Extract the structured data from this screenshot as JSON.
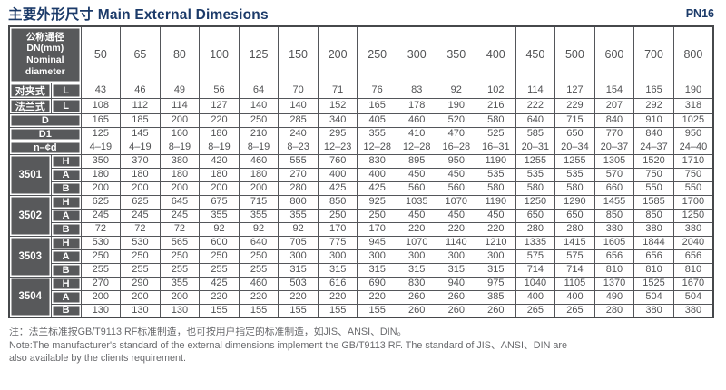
{
  "page": {
    "title": "主要外形尺寸 Main External Dimesions",
    "pressure_rating": "PN16"
  },
  "colors": {
    "accent_navy": "#1b3a69",
    "header_cell_bg": "#58595b",
    "cell_text": "#515254",
    "grid_border": "#54565a"
  },
  "table": {
    "corner_lines": [
      "公称通径",
      "DN(mm)",
      "Nominal",
      "diameter"
    ],
    "dn_columns": [
      "50",
      "65",
      "80",
      "100",
      "125",
      "150",
      "200",
      "250",
      "300",
      "350",
      "400",
      "450",
      "500",
      "600",
      "700",
      "800"
    ],
    "dimension_rows": [
      {
        "label": "对夹式",
        "sub": "L",
        "values": [
          "43",
          "46",
          "49",
          "56",
          "64",
          "70",
          "71",
          "76",
          "83",
          "92",
          "102",
          "114",
          "127",
          "154",
          "165",
          "190"
        ]
      },
      {
        "label": "法兰式",
        "sub": "L",
        "values": [
          "108",
          "112",
          "114",
          "127",
          "140",
          "140",
          "152",
          "165",
          "178",
          "190",
          "216",
          "222",
          "229",
          "207",
          "292",
          "318"
        ]
      },
      {
        "label": "D",
        "values": [
          "165",
          "185",
          "200",
          "220",
          "250",
          "285",
          "340",
          "405",
          "460",
          "520",
          "580",
          "640",
          "715",
          "840",
          "910",
          "1025"
        ]
      },
      {
        "label": "D1",
        "values": [
          "125",
          "145",
          "160",
          "180",
          "210",
          "240",
          "295",
          "355",
          "410",
          "470",
          "525",
          "585",
          "650",
          "770",
          "840",
          "950"
        ]
      },
      {
        "label": "n–¢d",
        "values": [
          "4–19",
          "4–19",
          "8–19",
          "8–19",
          "8–19",
          "8–23",
          "12–23",
          "12–28",
          "12–28",
          "16–28",
          "16–31",
          "20–31",
          "20–34",
          "20–37",
          "24–37",
          "24–40"
        ]
      }
    ],
    "model_groups": [
      {
        "model": "3501",
        "rows": [
          {
            "sub": "H",
            "values": [
              "350",
              "370",
              "380",
              "420",
              "460",
              "555",
              "760",
              "830",
              "895",
              "950",
              "1190",
              "1255",
              "1255",
              "1305",
              "1520",
              "1710"
            ]
          },
          {
            "sub": "A",
            "values": [
              "180",
              "180",
              "180",
              "180",
              "180",
              "270",
              "400",
              "400",
              "450",
              "450",
              "535",
              "535",
              "535",
              "570",
              "750",
              "750"
            ]
          },
          {
            "sub": "B",
            "values": [
              "200",
              "200",
              "200",
              "200",
              "200",
              "280",
              "425",
              "425",
              "560",
              "560",
              "580",
              "580",
              "580",
              "660",
              "550",
              "550"
            ]
          }
        ]
      },
      {
        "model": "3502",
        "rows": [
          {
            "sub": "H",
            "values": [
              "625",
              "625",
              "645",
              "675",
              "715",
              "800",
              "850",
              "925",
              "1035",
              "1070",
              "1190",
              "1250",
              "1290",
              "1455",
              "1585",
              "1700"
            ]
          },
          {
            "sub": "A",
            "values": [
              "245",
              "245",
              "245",
              "355",
              "355",
              "355",
              "250",
              "250",
              "450",
              "450",
              "450",
              "650",
              "650",
              "850",
              "850",
              "1250"
            ]
          },
          {
            "sub": "B",
            "values": [
              "72",
              "72",
              "72",
              "92",
              "92",
              "92",
              "170",
              "170",
              "220",
              "220",
              "220",
              "280",
              "280",
              "380",
              "380",
              "380"
            ]
          }
        ]
      },
      {
        "model": "3503",
        "rows": [
          {
            "sub": "H",
            "values": [
              "530",
              "530",
              "565",
              "600",
              "640",
              "705",
              "775",
              "945",
              "1070",
              "1140",
              "1210",
              "1335",
              "1415",
              "1605",
              "1844",
              "2040"
            ]
          },
          {
            "sub": "A",
            "values": [
              "250",
              "250",
              "250",
              "250",
              "250",
              "300",
              "300",
              "300",
              "300",
              "300",
              "300",
              "575",
              "575",
              "656",
              "656",
              "656"
            ]
          },
          {
            "sub": "B",
            "values": [
              "255",
              "255",
              "255",
              "255",
              "255",
              "315",
              "315",
              "315",
              "315",
              "315",
              "315",
              "714",
              "714",
              "810",
              "810",
              "810"
            ]
          }
        ]
      },
      {
        "model": "3504",
        "rows": [
          {
            "sub": "H",
            "values": [
              "270",
              "290",
              "355",
              "425",
              "460",
              "503",
              "616",
              "690",
              "830",
              "940",
              "975",
              "1040",
              "1105",
              "1370",
              "1525",
              "1670"
            ]
          },
          {
            "sub": "A",
            "values": [
              "200",
              "200",
              "200",
              "220",
              "220",
              "220",
              "220",
              "220",
              "260",
              "260",
              "385",
              "400",
              "400",
              "490",
              "504",
              "504"
            ]
          },
          {
            "sub": "B",
            "values": [
              "130",
              "130",
              "130",
              "155",
              "155",
              "155",
              "155",
              "155",
              "260",
              "260",
              "260",
              "265",
              "265",
              "280",
              "380",
              "380"
            ]
          }
        ]
      }
    ]
  },
  "notes": {
    "cn": "注：法兰标准按GB/T9113 RF标准制造，也可按用户指定的标准制造，如JIS、ANSI、DIN。",
    "en_line1": "Note:The manufacturer's standard of the external dimensions implement the GB/T9113 RF. The standard of JIS、ANSI、DIN are",
    "en_line2": "also available by the clients requirement."
  }
}
